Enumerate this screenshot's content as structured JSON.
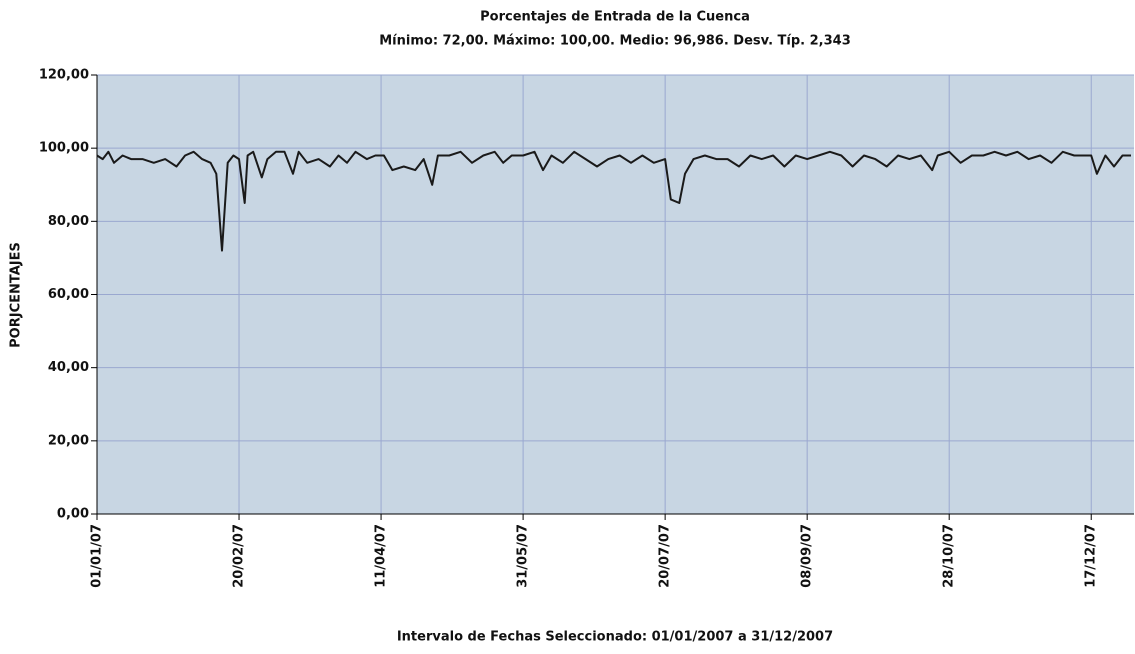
{
  "chart_data": {
    "type": "line",
    "title": "Porcentajes de Entrada de la Cuenca",
    "subtitle": "Mínimo: 72,00. Máximo: 100,00. Medio: 96,986. Desv. Típ. 2,343",
    "xlabel": "Intervalo de Fechas Seleccionado: 01/01/2007 a 31/12/2007",
    "ylabel": "PORJCENTAJES",
    "x": [
      "01/01/07",
      "03/01/07",
      "05/01/07",
      "07/01/07",
      "10/01/07",
      "13/01/07",
      "17/01/07",
      "21/01/07",
      "25/01/07",
      "29/01/07",
      "01/02/07",
      "04/02/07",
      "07/02/07",
      "10/02/07",
      "12/02/07",
      "14/02/07",
      "16/02/07",
      "18/02/07",
      "20/02/07",
      "22/02/07",
      "23/02/07",
      "25/02/07",
      "28/02/07",
      "02/03/07",
      "05/03/07",
      "08/03/07",
      "11/03/07",
      "13/03/07",
      "16/03/07",
      "20/03/07",
      "24/03/07",
      "27/03/07",
      "30/03/07",
      "02/04/07",
      "06/04/07",
      "09/04/07",
      "12/04/07",
      "15/04/07",
      "19/04/07",
      "23/04/07",
      "26/04/07",
      "29/04/07",
      "01/05/07",
      "05/05/07",
      "09/05/07",
      "13/05/07",
      "17/05/07",
      "21/05/07",
      "24/05/07",
      "27/05/07",
      "31/05/07",
      "04/06/07",
      "07/06/07",
      "10/06/07",
      "14/06/07",
      "18/06/07",
      "22/06/07",
      "26/06/07",
      "30/06/07",
      "04/07/07",
      "08/07/07",
      "12/07/07",
      "16/07/07",
      "20/07/07",
      "22/07/07",
      "25/07/07",
      "27/07/07",
      "30/07/07",
      "03/08/07",
      "07/08/07",
      "11/08/07",
      "15/08/07",
      "19/08/07",
      "23/08/07",
      "27/08/07",
      "31/08/07",
      "04/09/07",
      "08/09/07",
      "12/09/07",
      "16/09/07",
      "20/09/07",
      "24/09/07",
      "28/09/07",
      "02/10/07",
      "06/10/07",
      "10/10/07",
      "14/10/07",
      "18/10/07",
      "22/10/07",
      "24/10/07",
      "28/10/07",
      "01/11/07",
      "05/11/07",
      "09/11/07",
      "13/11/07",
      "17/11/07",
      "21/11/07",
      "25/11/07",
      "29/11/07",
      "03/12/07",
      "07/12/07",
      "11/12/07",
      "15/12/07",
      "17/12/07",
      "19/12/07",
      "22/12/07",
      "25/12/07",
      "28/12/07",
      "31/12/07"
    ],
    "series": [
      {
        "color": "#1a1a1a",
        "values": [
          98,
          97,
          99,
          96,
          98,
          97,
          97,
          96,
          97,
          95,
          98,
          99,
          97,
          96,
          93,
          72,
          96,
          98,
          97,
          85,
          98,
          99,
          92,
          97,
          99,
          99,
          93,
          99,
          96,
          97,
          95,
          98,
          96,
          99,
          97,
          98,
          98,
          94,
          95,
          94,
          97,
          90,
          98,
          98,
          99,
          96,
          98,
          99,
          96,
          98,
          98,
          99,
          94,
          98,
          96,
          99,
          97,
          95,
          97,
          98,
          96,
          98,
          96,
          97,
          86,
          85,
          93,
          97,
          98,
          97,
          97,
          95,
          98,
          97,
          98,
          95,
          98,
          97,
          98,
          99,
          98,
          95,
          98,
          97,
          95,
          98,
          97,
          98,
          94,
          98,
          99,
          96,
          98,
          98,
          99,
          98,
          99,
          97,
          98,
          96,
          99,
          98,
          98,
          98,
          93,
          98,
          95,
          98,
          98
        ]
      }
    ],
    "xlim": [
      "01/01/07",
      "31/12/07"
    ],
    "xticks": [
      "01/01/07",
      "20/02/07",
      "11/04/07",
      "31/05/07",
      "20/07/07",
      "08/09/07",
      "28/10/07",
      "17/12/07"
    ],
    "ylim": [
      0,
      120
    ],
    "yticks": [
      {
        "value": 0,
        "label": "0,00"
      },
      {
        "value": 20,
        "label": "20,00"
      },
      {
        "value": 40,
        "label": "40,00"
      },
      {
        "value": 60,
        "label": "60,00"
      },
      {
        "value": 80,
        "label": "80,00"
      },
      {
        "value": 100,
        "label": "100,00"
      },
      {
        "value": 120,
        "label": "120,00"
      }
    ],
    "grid": true,
    "plot_background": "#c8d6e3",
    "grid_color": "#9aa8d0"
  }
}
